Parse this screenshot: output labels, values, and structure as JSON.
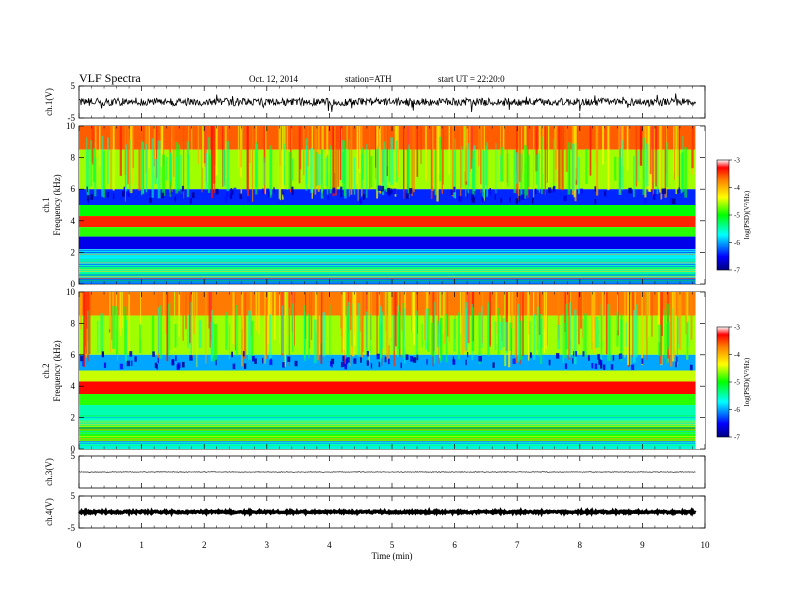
{
  "header": {
    "title": "VLF  Spectra",
    "date": "Oct. 12, 2014",
    "station": "station=ATH",
    "start": "start  UT  =    22:20:0"
  },
  "chart_data": [
    {
      "type": "line",
      "ylabel": "ch.1(V)",
      "ylim": [
        -5,
        5
      ],
      "yticks": [
        "5",
        "-5"
      ],
      "baseline": 0,
      "noise_amplitude": 1.2
    },
    {
      "type": "heatmap",
      "ylabel_channel": "ch.1",
      "ylabel": "Frequency  (kHz)",
      "ylim": [
        0,
        10
      ],
      "yticks": [
        "10",
        "8",
        "6",
        "4",
        "2",
        "0"
      ],
      "colorbar": {
        "label": "log(PSD)(V²/Hz)",
        "range": [
          -7,
          -3
        ],
        "ticks": [
          "-3",
          "-4",
          "-5",
          "-6",
          "-7"
        ]
      },
      "bands": [
        {
          "freq_khz": [
            8.5,
            10
          ],
          "level": -3.6
        },
        {
          "freq_khz": [
            6.0,
            8.5
          ],
          "level": -4.6
        },
        {
          "freq_khz": [
            5.0,
            6.0
          ],
          "level": -6.4
        },
        {
          "freq_khz": [
            4.3,
            5.0
          ],
          "level": -5.0
        },
        {
          "freq_khz": [
            3.6,
            4.3
          ],
          "level": -3.4
        },
        {
          "freq_khz": [
            3.0,
            3.6
          ],
          "level": -4.9
        },
        {
          "freq_khz": [
            2.2,
            3.0
          ],
          "level": -6.6
        },
        {
          "freq_khz": [
            1.2,
            2.2
          ],
          "level": -5.8
        },
        {
          "freq_khz": [
            0.4,
            1.2
          ],
          "level": -5.5
        },
        {
          "freq_khz": [
            0.0,
            0.4
          ],
          "level": -6.2
        }
      ]
    },
    {
      "type": "heatmap",
      "ylabel_channel": "ch.2",
      "ylabel": "Frequency  (kHz)",
      "ylim": [
        0,
        10
      ],
      "yticks": [
        "10",
        "8",
        "6",
        "4",
        "2",
        "0"
      ],
      "colorbar": {
        "label": "log(PSD)(V²/Hz)",
        "range": [
          -7,
          -3
        ],
        "ticks": [
          "-3",
          "-4",
          "-5",
          "-6",
          "-7"
        ]
      },
      "bands": [
        {
          "freq_khz": [
            8.5,
            10
          ],
          "level": -3.7
        },
        {
          "freq_khz": [
            6.0,
            8.5
          ],
          "level": -4.6
        },
        {
          "freq_khz": [
            5.0,
            6.0
          ],
          "level": -6.0
        },
        {
          "freq_khz": [
            4.3,
            5.0
          ],
          "level": -4.5
        },
        {
          "freq_khz": [
            3.5,
            4.3
          ],
          "level": -3.3
        },
        {
          "freq_khz": [
            2.8,
            3.5
          ],
          "level": -4.9
        },
        {
          "freq_khz": [
            1.5,
            2.8
          ],
          "level": -5.5
        },
        {
          "freq_khz": [
            0.5,
            1.5
          ],
          "level": -4.9
        },
        {
          "freq_khz": [
            0.0,
            0.5
          ],
          "level": -5.6
        }
      ]
    },
    {
      "type": "line",
      "ylabel": "ch.3(V)",
      "ylim": [
        -5,
        5
      ],
      "yticks": [
        "5"
      ],
      "baseline": 0,
      "noise_amplitude": 0.1
    },
    {
      "type": "line",
      "ylabel": "ch.4(V)",
      "ylim": [
        -5,
        5
      ],
      "yticks": [
        "5",
        "-5"
      ],
      "baseline": 0,
      "noise_amplitude": 0.3
    }
  ],
  "xaxis": {
    "label": "Time  (min)",
    "range": [
      0,
      10
    ],
    "ticks": [
      "0",
      "1",
      "2",
      "3",
      "4",
      "5",
      "6",
      "7",
      "8",
      "9",
      "10"
    ],
    "data_end": 9.85
  }
}
